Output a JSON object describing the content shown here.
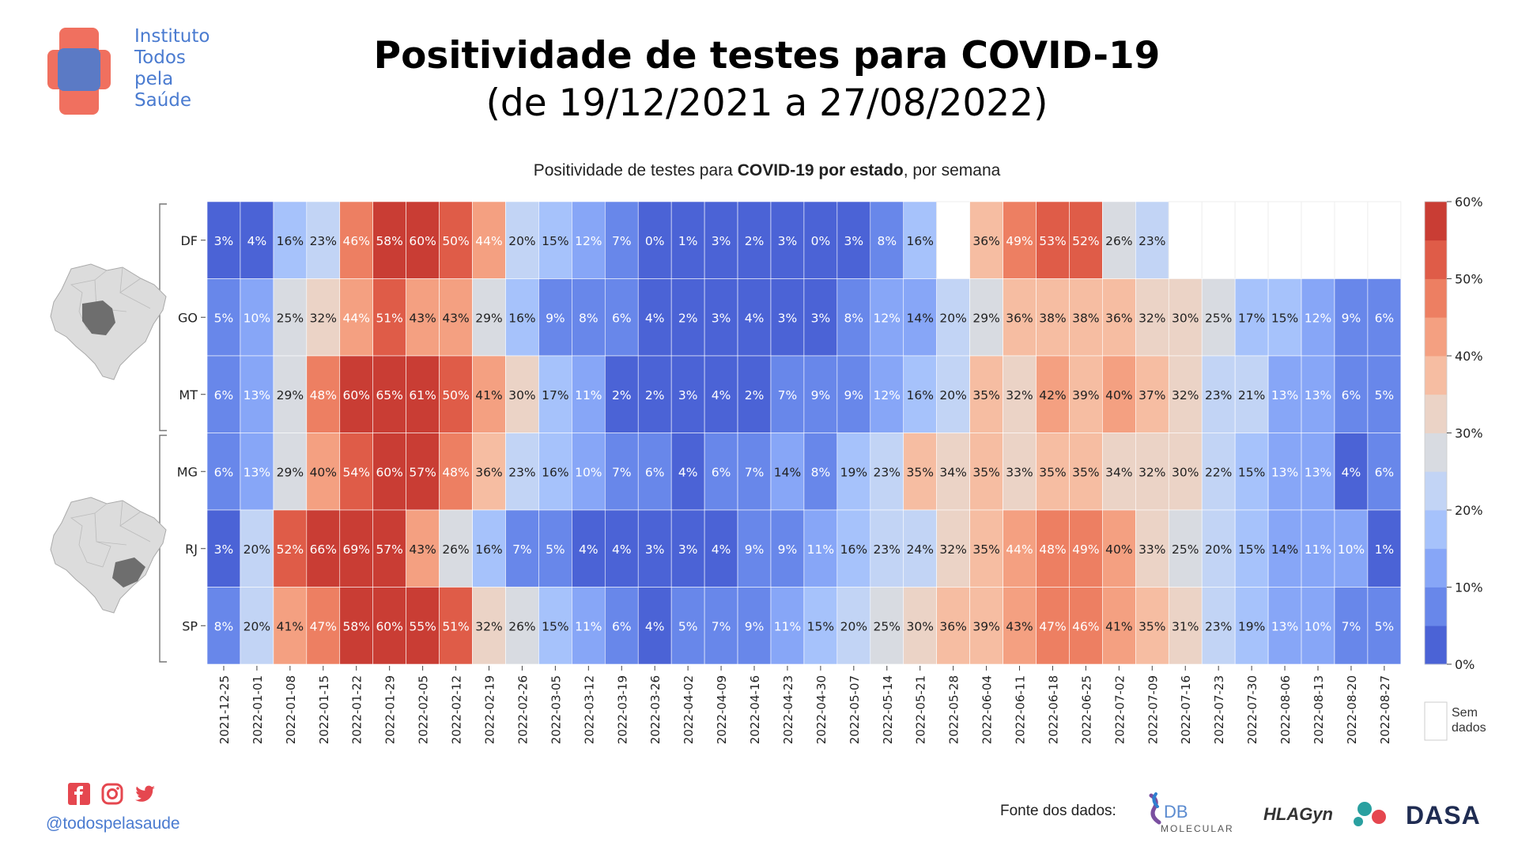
{
  "header": {
    "logo_lines": [
      "Instituto",
      "Todos",
      "pela",
      "Saúde"
    ],
    "title": "Positividade de testes para COVID-19",
    "subtitle": "(de 19/12/2021 a 27/08/2022)"
  },
  "footer": {
    "social_icons": [
      "facebook-icon",
      "instagram-icon",
      "twitter-icon"
    ],
    "handle": "@todospelasaude",
    "source_label": "Fonte dos dados:",
    "source_logos": [
      "DB Molecular",
      "HLAGyn",
      "DASA"
    ]
  },
  "colors": {
    "logo_red": "#f0705f",
    "logo_blue": "#4a7bd0",
    "map_highlight": "#6e6e6e",
    "map_base": "#dcdcdc"
  },
  "chart_data": {
    "type": "heatmap",
    "title_prefix": "Positividade de testes para ",
    "title_bold": "COVID-19 por estado",
    "title_suffix": ", por semana",
    "rows": [
      "DF",
      "GO",
      "MT",
      "MG",
      "RJ",
      "SP"
    ],
    "columns": [
      "2021-12-25",
      "2022-01-01",
      "2022-01-08",
      "2022-01-15",
      "2022-01-22",
      "2022-01-29",
      "2022-02-05",
      "2022-02-12",
      "2022-02-19",
      "2022-02-26",
      "2022-03-05",
      "2022-03-12",
      "2022-03-19",
      "2022-03-26",
      "2022-04-02",
      "2022-04-09",
      "2022-04-16",
      "2022-04-23",
      "2022-04-30",
      "2022-05-07",
      "2022-05-14",
      "2022-05-21",
      "2022-05-28",
      "2022-06-04",
      "2022-06-11",
      "2022-06-18",
      "2022-06-25",
      "2022-07-02",
      "2022-07-09",
      "2022-07-16",
      "2022-07-23",
      "2022-07-30",
      "2022-08-06",
      "2022-08-13",
      "2022-08-20",
      "2022-08-27"
    ],
    "values": [
      [
        3,
        4,
        16,
        23,
        46,
        58,
        60,
        50,
        44,
        20,
        15,
        12,
        7,
        0,
        1,
        3,
        2,
        3,
        0,
        3,
        8,
        16,
        null,
        36,
        49,
        53,
        52,
        26,
        23,
        null,
        null,
        null,
        null,
        null,
        null,
        null
      ],
      [
        5,
        10,
        25,
        32,
        44,
        51,
        43,
        43,
        29,
        16,
        9,
        8,
        6,
        4,
        2,
        3,
        4,
        3,
        3,
        8,
        12,
        14,
        20,
        29,
        36,
        38,
        38,
        36,
        32,
        30,
        25,
        17,
        15,
        12,
        9,
        6
      ],
      [
        6,
        13,
        29,
        48,
        60,
        65,
        61,
        50,
        41,
        30,
        17,
        11,
        2,
        2,
        3,
        4,
        2,
        7,
        9,
        9,
        12,
        16,
        20,
        35,
        32,
        42,
        39,
        40,
        37,
        32,
        23,
        21,
        13,
        13,
        6,
        5
      ],
      [
        6,
        13,
        29,
        40,
        54,
        60,
        57,
        48,
        36,
        23,
        16,
        10,
        7,
        6,
        4,
        6,
        7,
        14,
        8,
        19,
        23,
        35,
        34,
        35,
        33,
        35,
        35,
        34,
        32,
        30,
        22,
        15,
        13,
        13,
        4,
        6
      ],
      [
        3,
        20,
        52,
        66,
        69,
        57,
        43,
        26,
        16,
        7,
        5,
        4,
        4,
        3,
        3,
        4,
        9,
        9,
        11,
        16,
        23,
        24,
        32,
        35,
        44,
        48,
        49,
        40,
        33,
        25,
        20,
        15,
        14,
        11,
        10,
        1
      ],
      [
        8,
        20,
        41,
        47,
        58,
        60,
        55,
        51,
        32,
        26,
        15,
        11,
        6,
        4,
        5,
        7,
        9,
        11,
        15,
        20,
        25,
        30,
        36,
        39,
        43,
        47,
        46,
        41,
        35,
        31,
        23,
        19,
        13,
        10,
        7,
        5
      ]
    ],
    "unit": "%",
    "colorbar": {
      "ticks": [
        "0%",
        "10%",
        "20%",
        "30%",
        "40%",
        "50%",
        "60%"
      ],
      "range": [
        0,
        60
      ],
      "colors": [
        "#4b63d6",
        "#6887ea",
        "#87a6f7",
        "#a6c2fb",
        "#c2d4f5",
        "#d8dbe1",
        "#ebd3c6",
        "#f6bda2",
        "#f4a081",
        "#ed7f62",
        "#df5c48",
        "#c93d34"
      ]
    },
    "missing_label": "Sem dados",
    "groups": [
      {
        "rows": [
          "DF",
          "GO",
          "MT"
        ],
        "map": "center-west"
      },
      {
        "rows": [
          "MG",
          "RJ",
          "SP"
        ],
        "map": "southeast"
      }
    ]
  }
}
